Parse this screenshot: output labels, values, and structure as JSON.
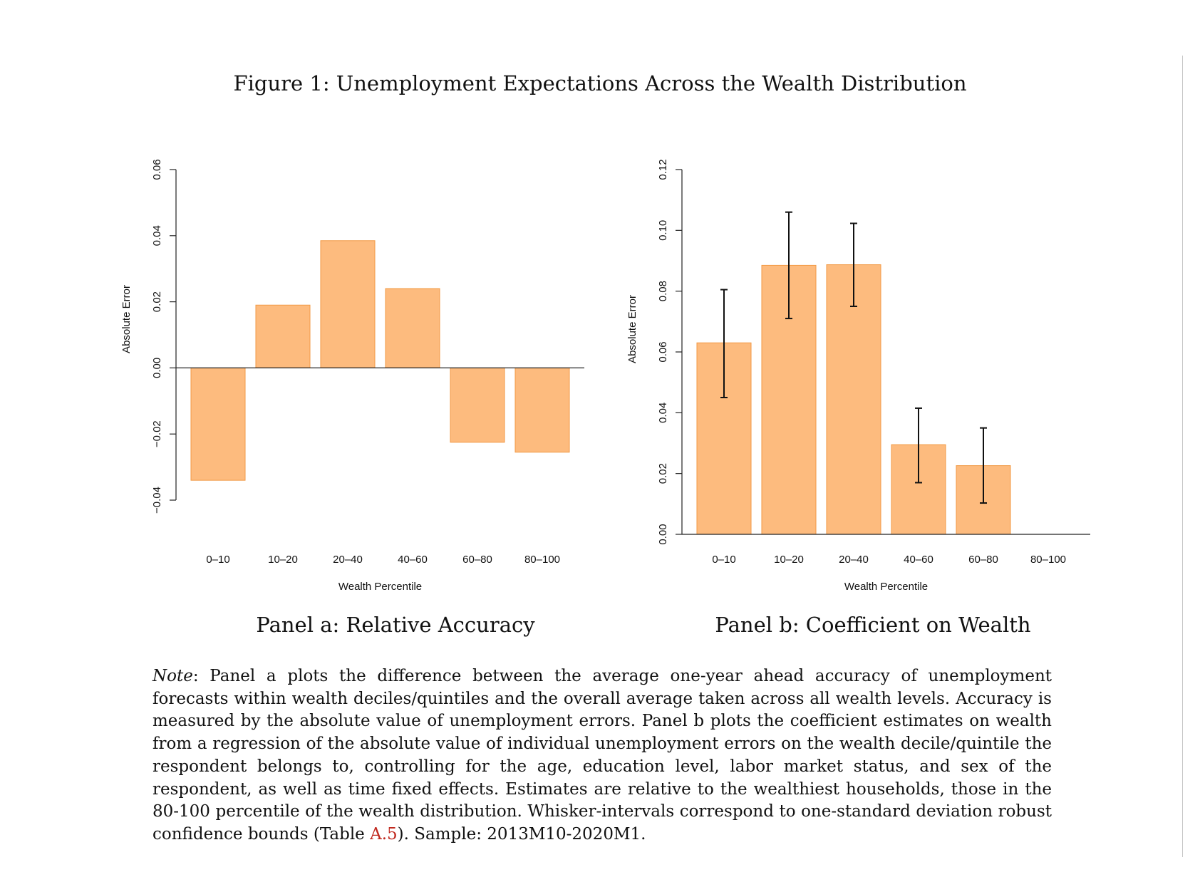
{
  "figure_title": "Figure 1: Unemployment Expectations Across the Wealth Distribution",
  "colors": {
    "bar_fill": "#FDBB7E",
    "bar_edge": "#F29A45",
    "axis": "#222222",
    "reference_link": "#c0281e"
  },
  "chart_data": [
    {
      "type": "bar",
      "caption": "Panel a: Relative Accuracy",
      "categories": [
        "0–10",
        "10–20",
        "20–40",
        "40–60",
        "60–80",
        "80–100"
      ],
      "values": [
        -0.034,
        0.019,
        0.0385,
        0.024,
        -0.0225,
        -0.0255
      ],
      "xlabel": "Wealth Percentile",
      "ylabel": "Absolute Error",
      "ylim": [
        -0.04,
        0.06
      ],
      "yticks": [
        "−0.04",
        "−0.02",
        "0.00",
        "0.02",
        "0.04",
        "0.06"
      ],
      "ytick_values": [
        -0.04,
        -0.02,
        0.0,
        0.02,
        0.04,
        0.06
      ],
      "zero_line": true,
      "grid": false
    },
    {
      "type": "bar",
      "caption": "Panel b: Coefficient on Wealth",
      "categories": [
        "0–10",
        "10–20",
        "20–40",
        "40–60",
        "60–80",
        "80–100"
      ],
      "values": [
        0.063,
        0.0885,
        0.0887,
        0.0295,
        0.0226,
        0.0
      ],
      "error_low": [
        0.045,
        0.071,
        0.075,
        0.017,
        0.0103,
        null
      ],
      "error_high": [
        0.0805,
        0.106,
        0.1023,
        0.0415,
        0.035,
        null
      ],
      "xlabel": "Wealth Percentile",
      "ylabel": "Absolute Error",
      "ylim": [
        0.0,
        0.12
      ],
      "yticks": [
        "0.00",
        "0.02",
        "0.04",
        "0.06",
        "0.08",
        "0.10",
        "0.12"
      ],
      "ytick_values": [
        0.0,
        0.02,
        0.04,
        0.06,
        0.08,
        0.1,
        0.12
      ],
      "zero_line": true,
      "grid": false
    }
  ],
  "note": {
    "lead": "Note",
    "text1": ": Panel a plots the difference between the average one-year ahead accuracy of unemployment forecasts within wealth deciles/quintiles and the overall average taken across all wealth levels. Accuracy is measured by the absolute value of unemployment errors. Panel b plots the coefficient estimates on wealth from a regression of the absolute value of individual unemployment errors on the wealth decile/quintile the respondent belongs to, controlling for the age, education level, labor market status, and sex of the respondent, as well as time fixed effects. Estimates are relative to the wealthiest households, those in the 80-100 percentile of the wealth distribution. Whisker-intervals correspond to one-standard deviation robust confidence bounds (Table ",
    "ref": "A.5",
    "text2": "). Sample: 2013M10-2020M1."
  }
}
